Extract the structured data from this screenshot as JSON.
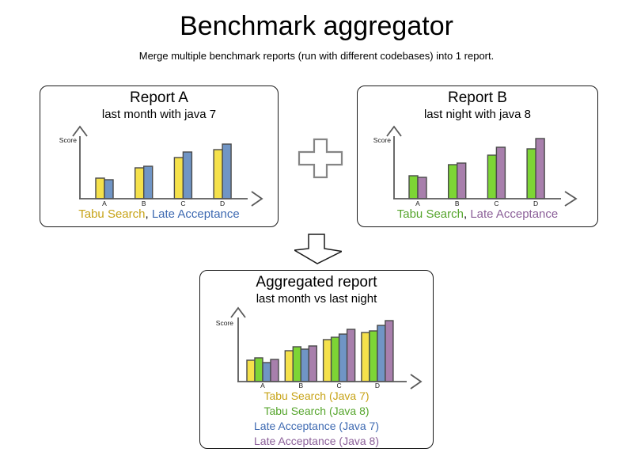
{
  "page": {
    "title": "Benchmark aggregator",
    "subtitle": "Merge multiple benchmark reports (run with different codebases) into 1 report."
  },
  "icons": {
    "plus": "plus-icon",
    "down_arrow": "down-arrow-icon"
  },
  "colors": {
    "axis": "#595959",
    "bar_border": "#4a4a4a",
    "plus_outline": "#858585",
    "arrow_outline": "#1a1a1a",
    "label_text": "#1a1a1a",
    "legend_separator_color": "#1a1a1a"
  },
  "chart_data": [
    {
      "id": "report-a",
      "type": "bar",
      "title": "Report A",
      "subtitle": "last month with java 7",
      "ylabel": "Score",
      "categories": [
        "A",
        "B",
        "C",
        "D"
      ],
      "series": [
        {
          "name": "Tabu Search",
          "color": "#F5E14B",
          "values": [
            26,
            39,
            52,
            62
          ]
        },
        {
          "name": "Late Acceptance",
          "color": "#7095C5",
          "values": [
            24,
            41,
            59,
            69
          ]
        }
      ],
      "ylim": [
        0,
        85
      ],
      "grid": false,
      "legend_layout": "inline",
      "legend_separator": ", ",
      "legend": [
        {
          "label": "Tabu Search",
          "color": "#C7A317"
        },
        {
          "label": "Late Acceptance",
          "color": "#3D69B1"
        }
      ]
    },
    {
      "id": "report-b",
      "type": "bar",
      "title": "Report B",
      "subtitle": "last night with java 8",
      "ylabel": "Score",
      "categories": [
        "A",
        "B",
        "C",
        "D"
      ],
      "series": [
        {
          "name": "Tabu Search",
          "color": "#7DD535",
          "values": [
            29,
            43,
            55,
            63
          ]
        },
        {
          "name": "Late Acceptance",
          "color": "#A87FAC",
          "values": [
            27,
            45,
            65,
            76
          ]
        }
      ],
      "ylim": [
        0,
        85
      ],
      "grid": false,
      "legend_layout": "inline",
      "legend_separator": ", ",
      "legend": [
        {
          "label": "Tabu Search",
          "color": "#56A52D"
        },
        {
          "label": "Late Acceptance",
          "color": "#8B5F98"
        }
      ]
    },
    {
      "id": "aggregated-report",
      "type": "bar",
      "title": "Aggregated report",
      "subtitle": "last month vs last night",
      "ylabel": "Score",
      "categories": [
        "A",
        "B",
        "C",
        "D"
      ],
      "series": [
        {
          "name": "Tabu Search (Java 7)",
          "color": "#F5E14B",
          "values": [
            27,
            39,
            53,
            62
          ]
        },
        {
          "name": "Tabu Search (Java 8)",
          "color": "#7DD535",
          "values": [
            30,
            44,
            56,
            64
          ]
        },
        {
          "name": "Late Acceptance (Java 7)",
          "color": "#7095C5",
          "values": [
            24,
            41,
            60,
            71
          ]
        },
        {
          "name": "Late Acceptance (Java 8)",
          "color": "#A87FAC",
          "values": [
            28,
            45,
            66,
            77
          ]
        }
      ],
      "ylim": [
        0,
        85
      ],
      "grid": false,
      "legend_layout": "stacked",
      "legend_separator": "",
      "legend": [
        {
          "label": "Tabu Search (Java 7)",
          "color": "#C7A317"
        },
        {
          "label": "Tabu Search (Java 8)",
          "color": "#56A52D"
        },
        {
          "label": "Late Acceptance (Java 7)",
          "color": "#3D69B1"
        },
        {
          "label": "Late Acceptance (Java 8)",
          "color": "#8B5F98"
        }
      ]
    }
  ]
}
